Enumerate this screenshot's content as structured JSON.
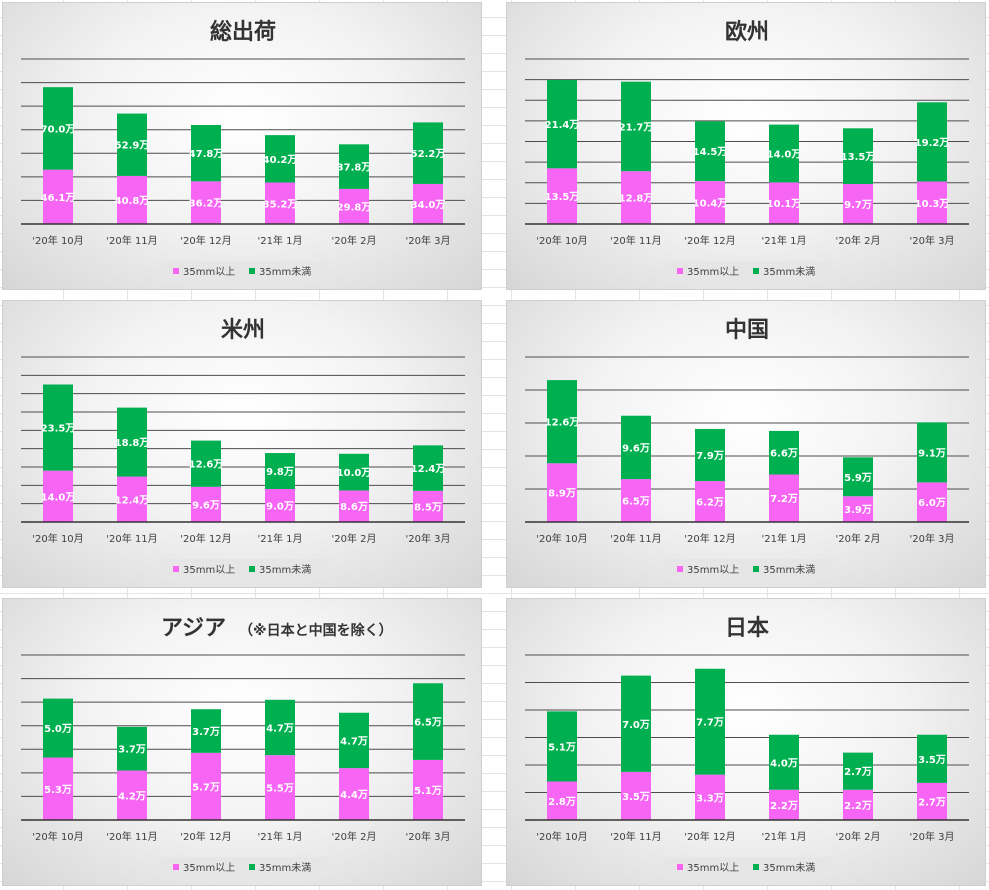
{
  "colors": {
    "series_35mm_over": "#f765f5",
    "series_35mm_under": "#00b050",
    "gridline": "#4d4d4d",
    "axis": "#333333",
    "legend_bg": "#e6e6e6",
    "label_text": "#ffffff",
    "title_text": "#333333"
  },
  "legend": {
    "items": [
      "35mm以上",
      "35mm未満"
    ]
  },
  "chart_data": [
    {
      "type": "bar",
      "stacked": true,
      "title": "総出荷",
      "title_note": "",
      "categories": [
        "'20年 10月",
        "'20年 11月",
        "'20年 12月",
        "'21年 1月",
        "'20年 2月",
        "'20年 3月"
      ],
      "series": [
        {
          "name": "35mm以上",
          "values": [
            46.1,
            40.8,
            36.2,
            35.2,
            29.8,
            34.0
          ],
          "labels": [
            "46.1万",
            "40.8万",
            "36.2万",
            "35.2万",
            "29.8万",
            "34.0万"
          ]
        },
        {
          "name": "35mm未満",
          "values": [
            70.0,
            52.9,
            47.8,
            40.2,
            37.8,
            52.2
          ],
          "labels": [
            "70.0万",
            "52.9万",
            "47.8万",
            "40.2万",
            "37.8万",
            "52.2万"
          ]
        }
      ],
      "ylim": [
        0,
        140
      ],
      "grid_step": 20,
      "grid": true,
      "legend_position": "bottom"
    },
    {
      "type": "bar",
      "stacked": true,
      "title": "欧州",
      "title_note": "",
      "categories": [
        "'20年 10月",
        "'20年 11月",
        "'20年 12月",
        "'21年 1月",
        "'20年 2月",
        "'20年 3月"
      ],
      "series": [
        {
          "name": "35mm以上",
          "values": [
            13.5,
            12.8,
            10.4,
            10.1,
            9.7,
            10.3
          ],
          "labels": [
            "13.5万",
            "12.8万",
            "10.4万",
            "10.1万",
            "9.7万",
            "10.3万"
          ]
        },
        {
          "name": "35mm未満",
          "values": [
            21.4,
            21.7,
            14.5,
            14.0,
            13.5,
            19.2
          ],
          "labels": [
            "21.4万",
            "21.7万",
            "14.5万",
            "14.0万",
            "13.5万",
            "19.2万"
          ]
        }
      ],
      "ylim": [
        0,
        40
      ],
      "grid_step": 5,
      "grid": true,
      "legend_position": "bottom"
    },
    {
      "type": "bar",
      "stacked": true,
      "title": "米州",
      "title_note": "",
      "categories": [
        "'20年 10月",
        "'20年 11月",
        "'20年 12月",
        "'21年 1月",
        "'20年 2月",
        "'20年 3月"
      ],
      "series": [
        {
          "name": "35mm以上",
          "values": [
            14.0,
            12.4,
            9.6,
            9.0,
            8.6,
            8.5
          ],
          "labels": [
            "14.0万",
            "12.4万",
            "9.6万",
            "9.0万",
            "8.6万",
            "8.5万"
          ]
        },
        {
          "name": "35mm未満",
          "values": [
            23.5,
            18.8,
            12.6,
            9.8,
            10.0,
            12.4
          ],
          "labels": [
            "23.5万",
            "18.8万",
            "12.6万",
            "9.8万",
            "10.0万",
            "12.4万"
          ]
        }
      ],
      "ylim": [
        0,
        45
      ],
      "grid_step": 5,
      "grid": true,
      "legend_position": "bottom"
    },
    {
      "type": "bar",
      "stacked": true,
      "title": "中国",
      "title_note": "",
      "categories": [
        "'20年 10月",
        "'20年 11月",
        "'20年 12月",
        "'21年 1月",
        "'20年 2月",
        "'20年 3月"
      ],
      "series": [
        {
          "name": "35mm以上",
          "values": [
            8.9,
            6.5,
            6.2,
            7.2,
            3.9,
            6.0
          ],
          "labels": [
            "8.9万",
            "6.5万",
            "6.2万",
            "7.2万",
            "3.9万",
            "6.0万"
          ]
        },
        {
          "name": "35mm未満",
          "values": [
            12.6,
            9.6,
            7.9,
            6.6,
            5.9,
            9.1
          ],
          "labels": [
            "12.6万",
            "9.6万",
            "7.9万",
            "6.6万",
            "5.9万",
            "9.1万"
          ]
        }
      ],
      "ylim": [
        0,
        25
      ],
      "grid_step": 5,
      "grid": true,
      "legend_position": "bottom"
    },
    {
      "type": "bar",
      "stacked": true,
      "title": "アジア",
      "title_note": "（※日本と中国を除く）",
      "categories": [
        "'20年 10月",
        "'20年 11月",
        "'20年 12月",
        "'21年 1月",
        "'20年 2月",
        "'20年 3月"
      ],
      "series": [
        {
          "name": "35mm以上",
          "values": [
            5.3,
            4.2,
            5.7,
            5.5,
            4.4,
            5.1
          ],
          "labels": [
            "5.3万",
            "4.2万",
            "5.7万",
            "5.5万",
            "4.4万",
            "5.1万"
          ]
        },
        {
          "name": "35mm未満",
          "values": [
            5.0,
            3.7,
            3.7,
            4.7,
            4.7,
            6.5
          ],
          "labels": [
            "5.0万",
            "3.7万",
            "3.7万",
            "4.7万",
            "4.7万",
            "6.5万"
          ]
        }
      ],
      "ylim": [
        0,
        14
      ],
      "grid_step": 2,
      "grid": true,
      "legend_position": "bottom"
    },
    {
      "type": "bar",
      "stacked": true,
      "title": "日本",
      "title_note": "",
      "categories": [
        "'20年 10月",
        "'20年 11月",
        "'20年 12月",
        "'21年 1月",
        "'20年 2月",
        "'20年 3月"
      ],
      "series": [
        {
          "name": "35mm以上",
          "values": [
            2.8,
            3.5,
            3.3,
            2.2,
            2.2,
            2.7
          ],
          "labels": [
            "2.8万",
            "3.5万",
            "3.3万",
            "2.2万",
            "2.2万",
            "2.7万"
          ]
        },
        {
          "name": "35mm未満",
          "values": [
            5.1,
            7.0,
            7.7,
            4.0,
            2.7,
            3.5
          ],
          "labels": [
            "5.1万",
            "7.0万",
            "7.7万",
            "4.0万",
            "2.7万",
            "3.5万"
          ]
        }
      ],
      "ylim": [
        0,
        12
      ],
      "grid_step": 2,
      "grid": true,
      "legend_position": "bottom"
    }
  ]
}
